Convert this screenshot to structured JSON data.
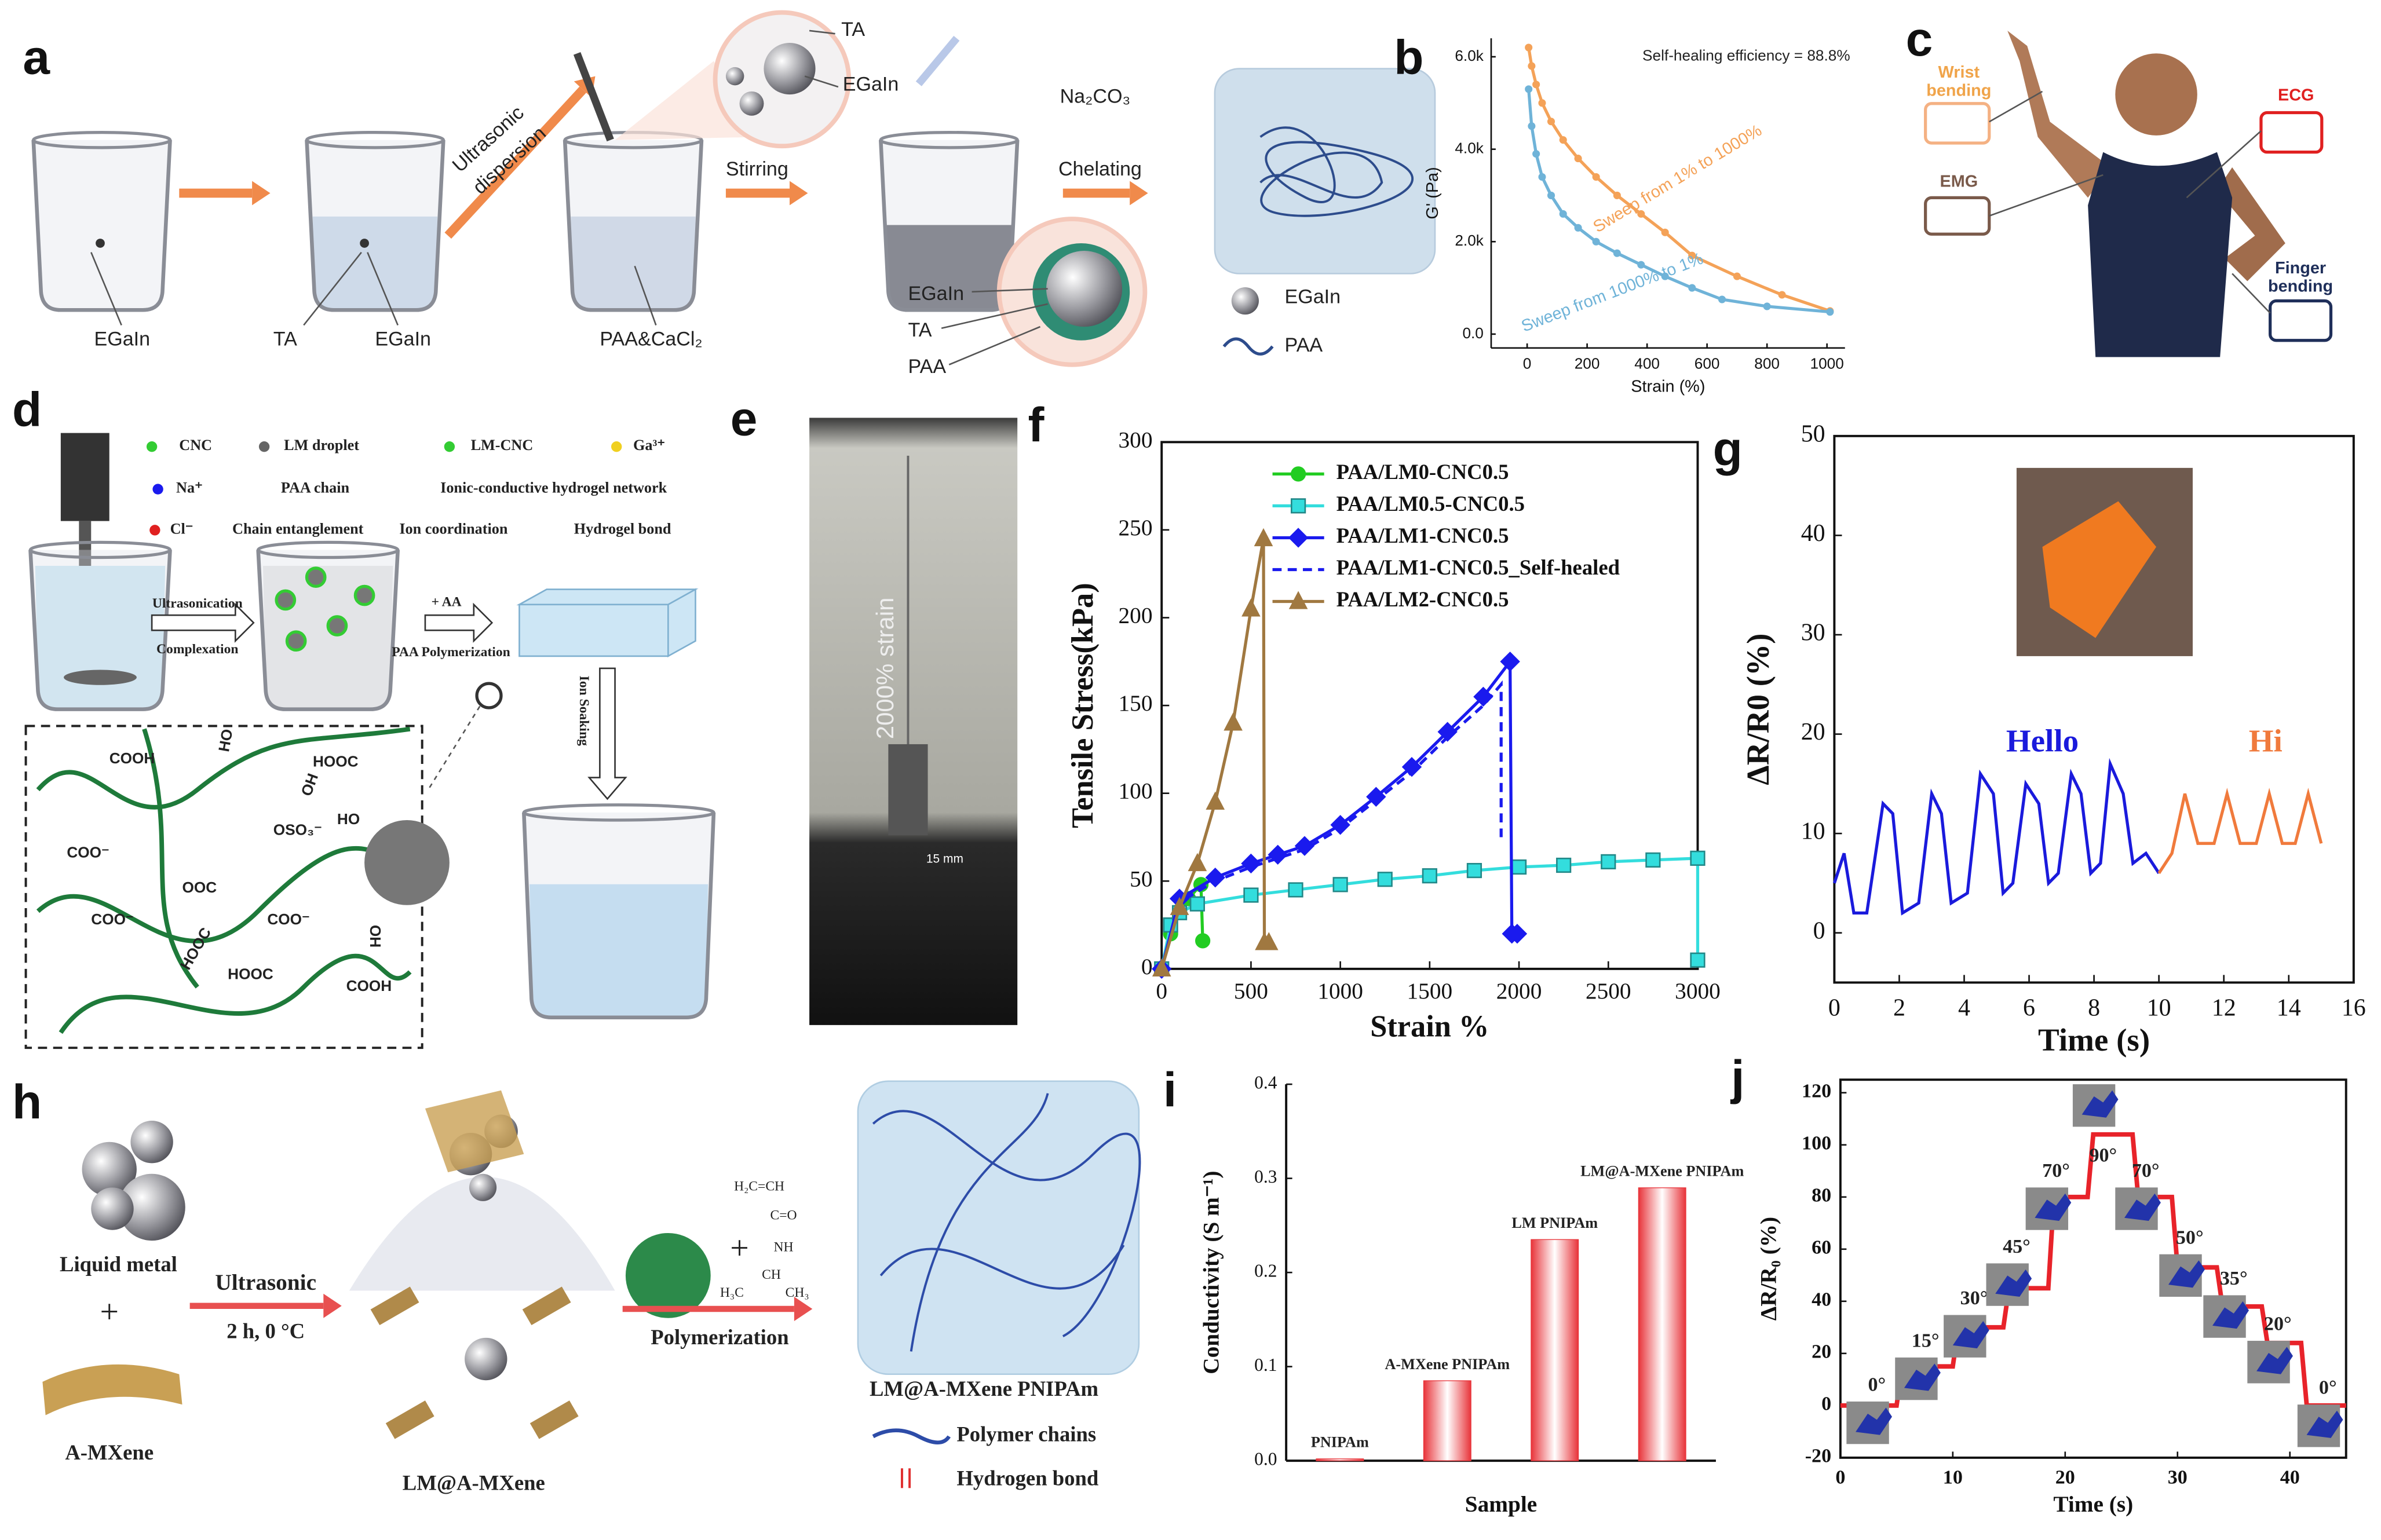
{
  "figure": {
    "panel_labels": [
      "a",
      "b",
      "c",
      "d",
      "e",
      "f",
      "g",
      "h",
      "i",
      "j"
    ],
    "a": {
      "egain_1": "EGaIn",
      "ta_1": "TA",
      "egain_2": "EGaIn",
      "ultrasonic": [
        "Ultrasonic",
        "dispersion"
      ],
      "paa_cacl2": "PAA&CaCl₂",
      "ta_top": "TA",
      "egain_top": "EGaIn",
      "na2co3": "Na₂CO₃",
      "stirring": "Stirring",
      "chelating": "Chelating",
      "layers": [
        "EGaIn",
        "TA",
        "PAA"
      ],
      "legend": [
        "EGaIn",
        "PAA"
      ]
    },
    "c": {
      "wrist": [
        "Wrist",
        "bending"
      ],
      "ecg": "ECG",
      "emg": "EMG",
      "finger": [
        "Finger",
        "bending"
      ]
    },
    "d": {
      "legend": [
        "CNC",
        "LM droplet",
        "LM-CNC",
        "Ga³⁺",
        "Na⁺",
        "PAA chain",
        "Ionic-conductive hydrogel network",
        "Cl⁻",
        "Chain entanglement",
        "Ion coordination",
        "Hydrogel bond"
      ],
      "steps": [
        "Ultrasonication",
        "Complexation",
        "+ AA",
        "PAA Polymerization",
        "Ion Soaking"
      ],
      "groups": [
        "COOH",
        "HO",
        "HOOC",
        "OH",
        "OSO₃⁻",
        "HO",
        "COO⁻",
        "OOC",
        "COO⁻",
        "COO⁻",
        "HOOC",
        "HOOC",
        "COOH",
        "HO"
      ]
    },
    "e": {
      "strain": "2000% strain",
      "scale": "15 mm"
    },
    "h": {
      "liquid_metal": "Liquid metal",
      "plus": "+",
      "mxene": "A-MXene",
      "ultrasonic": "Ultrasonic",
      "condition": "2 h, 0 °C",
      "lm_mxene": "LM@A-MXene",
      "polymerization": "Polymerization",
      "plus2": "+",
      "monomer": [
        "H₂C=CH",
        "C=O",
        "NH",
        "CH",
        "H₃C",
        "CH₃"
      ],
      "product": "LM@A-MXene PNIPAm",
      "legend": [
        "Polymer chains",
        "Hydrogen bond"
      ]
    }
  },
  "chart_data": [
    {
      "type": "line",
      "annotation": "Self-healing efficiency = 88.8%",
      "xlabel": "Strain (%)",
      "ylabel": "G' (Pa)",
      "xlim": [
        -120,
        1060
      ],
      "ylim": [
        -300,
        6400
      ],
      "xticks": [
        0,
        200,
        400,
        600,
        800,
        1000
      ],
      "yticks": [
        {
          "value": 0,
          "label": "0.0"
        },
        {
          "value": 2000,
          "label": "2.0k"
        },
        {
          "value": 4000,
          "label": "4.0k"
        },
        {
          "value": 6000,
          "label": "6.0k"
        }
      ],
      "series": [
        {
          "name": "Sweep from 1% to 1000%",
          "color": "#f4a258",
          "marker": "circle",
          "x": [
            5,
            15,
            30,
            50,
            80,
            120,
            170,
            230,
            300,
            380,
            460,
            550,
            700,
            850,
            1010
          ],
          "values": [
            6200,
            5800,
            5400,
            5000,
            4600,
            4200,
            3800,
            3400,
            3000,
            2600,
            2200,
            1700,
            1250,
            850,
            500
          ]
        },
        {
          "name": "Sweep from 1000% to 1%",
          "color": "#6fb3d8",
          "marker": "circle",
          "x": [
            5,
            15,
            30,
            50,
            80,
            120,
            170,
            230,
            300,
            380,
            460,
            550,
            650,
            800,
            1010
          ],
          "values": [
            5300,
            4500,
            3900,
            3400,
            3000,
            2600,
            2300,
            2000,
            1750,
            1500,
            1250,
            1000,
            750,
            600,
            480
          ]
        }
      ]
    },
    {
      "type": "line",
      "xlabel": "Strain %",
      "ylabel": "Tensile Stress(kPa)",
      "xlim": [
        0,
        3000
      ],
      "ylim": [
        0,
        300
      ],
      "xticks": [
        0,
        500,
        1000,
        1500,
        2000,
        2500,
        3000
      ],
      "yticks": [
        0,
        50,
        100,
        150,
        200,
        250,
        300
      ],
      "series": [
        {
          "name": "PAA/LM0-CNC0.5",
          "color": "#22cc22",
          "marker": "circle",
          "x": [
            0,
            50,
            100,
            150,
            220,
            230
          ],
          "values": [
            0,
            20,
            33,
            40,
            48,
            16
          ]
        },
        {
          "name": "PAA/LM0.5-CNC0.5",
          "color": "#33dddd",
          "marker": "square",
          "x": [
            0,
            50,
            100,
            200,
            500,
            750,
            1000,
            1250,
            1500,
            1750,
            2000,
            2250,
            2500,
            2750,
            3000,
            3000
          ],
          "values": [
            0,
            25,
            32,
            37,
            42,
            45,
            48,
            51,
            53,
            56,
            58,
            59,
            61,
            62,
            63,
            5
          ]
        },
        {
          "name": "PAA/LM1-CNC0.5",
          "color": "#1a1aee",
          "marker": "diamond",
          "x": [
            0,
            100,
            300,
            500,
            650,
            800,
            1000,
            1200,
            1400,
            1600,
            1800,
            1950,
            1960,
            1990
          ],
          "values": [
            0,
            40,
            52,
            60,
            65,
            70,
            82,
            98,
            115,
            135,
            155,
            175,
            20,
            20
          ]
        },
        {
          "name": "PAA/LM1-CNC0.5_Self-healed",
          "color": "#1a1aee",
          "linestyle": "dashed",
          "x": [
            0,
            100,
            300,
            500,
            800,
            1000,
            1200,
            1400,
            1600,
            1800,
            1900,
            1900
          ],
          "values": [
            0,
            38,
            50,
            58,
            68,
            80,
            96,
            112,
            132,
            150,
            162,
            75
          ]
        },
        {
          "name": "PAA/LM2-CNC0.5",
          "color": "#a07840",
          "marker": "triangle",
          "x": [
            0,
            100,
            200,
            300,
            400,
            500,
            570,
            575,
            600
          ],
          "values": [
            0,
            35,
            60,
            95,
            140,
            205,
            245,
            15,
            15
          ]
        }
      ]
    },
    {
      "type": "line",
      "xlabel": "Time (s)",
      "ylabel": "ΔR/R0 (%)",
      "xlim": [
        0,
        16
      ],
      "ylim": [
        -5,
        50
      ],
      "xticks": [
        0,
        2,
        4,
        6,
        8,
        10,
        12,
        14,
        16
      ],
      "yticks": [
        0,
        10,
        20,
        30,
        40,
        50
      ],
      "series": [
        {
          "name": "Hello",
          "color": "#1a1adc",
          "x": [
            0,
            0.3,
            0.6,
            1.0,
            1.5,
            1.8,
            2.1,
            2.6,
            3.0,
            3.3,
            3.6,
            4.1,
            4.5,
            4.9,
            5.2,
            5.5,
            5.9,
            6.3,
            6.6,
            6.9,
            7.3,
            7.6,
            7.9,
            8.2,
            8.5,
            8.9,
            9.2,
            9.6,
            10.0
          ],
          "values": [
            5,
            8,
            2,
            2,
            13,
            12,
            2,
            3,
            14,
            12,
            3,
            4,
            16,
            14,
            4,
            5,
            15,
            13,
            5,
            6,
            16,
            14,
            6,
            7,
            17,
            14,
            7,
            8,
            6
          ]
        },
        {
          "name": "Hi",
          "color": "#f07a3c",
          "x": [
            10,
            10.4,
            10.8,
            11.2,
            11.7,
            12.1,
            12.5,
            13,
            13.4,
            13.8,
            14.2,
            14.6,
            15
          ],
          "values": [
            6,
            8,
            14,
            9,
            9,
            14,
            9,
            9,
            14,
            9,
            9,
            14,
            9
          ]
        }
      ]
    },
    {
      "type": "bar",
      "xlabel": "Sample",
      "ylabel": "Conductivity (S m⁻¹)",
      "categories": [
        "PNIPAm",
        "A-MXene PNIPAm",
        "LM PNIPAm",
        "LM@A-MXene PNIPAm"
      ],
      "values": [
        0.002,
        0.085,
        0.235,
        0.29
      ],
      "color": "#e8343a",
      "ylim": [
        0,
        0.4
      ],
      "yticks": [
        {
          "value": 0,
          "label": "0.0"
        },
        0.1,
        0.2,
        0.3,
        0.4
      ]
    },
    {
      "type": "line",
      "xlabel": "Time (s)",
      "ylabel": "ΔR/R₀ (%)",
      "xlim": [
        0,
        45
      ],
      "ylim": [
        -20,
        125
      ],
      "xticks": [
        0,
        10,
        20,
        30,
        40
      ],
      "yticks": [
        -20,
        0,
        20,
        40,
        60,
        80,
        100,
        120
      ],
      "annotations": [
        "0°",
        "15°",
        "30°",
        "45°",
        "70°",
        "90°",
        "70°",
        "50°",
        "35°",
        "20°",
        "0°"
      ],
      "series": [
        {
          "color": "#e8232a",
          "x": [
            0,
            5,
            5.5,
            10,
            10.5,
            14.5,
            15,
            18.5,
            19,
            22,
            22.5,
            26,
            26.5,
            29.5,
            30,
            33.5,
            34,
            37.5,
            38,
            41,
            41.5,
            45
          ],
          "values": [
            0,
            0,
            15,
            15,
            30,
            30,
            45,
            45,
            80,
            80,
            104,
            104,
            80,
            80,
            53,
            53,
            38,
            38,
            24,
            24,
            0,
            0
          ]
        }
      ]
    }
  ]
}
